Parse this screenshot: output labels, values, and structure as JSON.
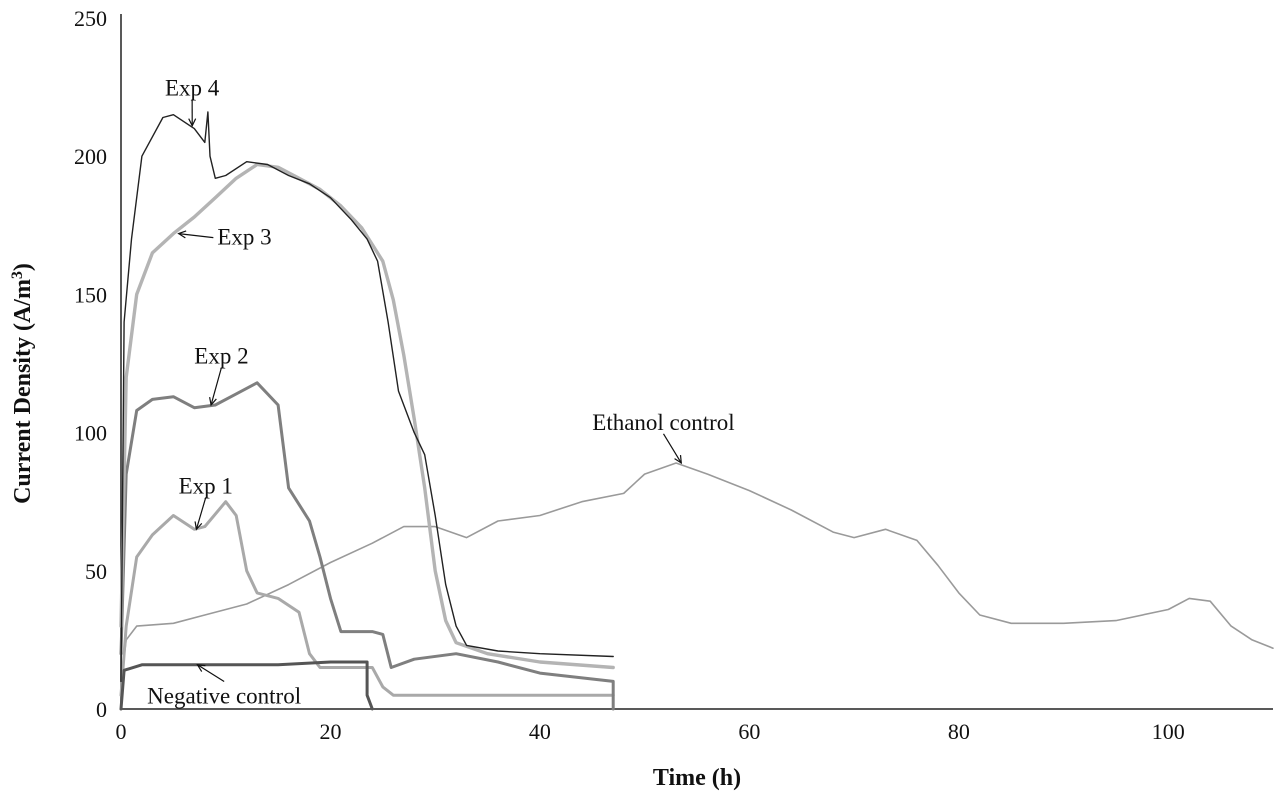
{
  "chart_data": {
    "type": "line",
    "title": "",
    "xlabel": "Time (h)",
    "ylabel_main": "Current Density (A/m",
    "ylabel_sup": "3",
    "ylabel_end": ")",
    "xlim": [
      0,
      110
    ],
    "ylim": [
      0,
      250
    ],
    "x_ticks": [
      0,
      20,
      40,
      60,
      80,
      100
    ],
    "y_ticks": [
      0,
      50,
      100,
      150,
      200,
      250
    ],
    "grid": false,
    "legend": "none",
    "series": [
      {
        "name": "Ethanol control",
        "color": "#9a9a9a",
        "width": 1.6,
        "points": [
          [
            0,
            10
          ],
          [
            0.5,
            25
          ],
          [
            1.5,
            30
          ],
          [
            5,
            31
          ],
          [
            8,
            34
          ],
          [
            12,
            38
          ],
          [
            16,
            45
          ],
          [
            20,
            53
          ],
          [
            24,
            60
          ],
          [
            27,
            66
          ],
          [
            30,
            66
          ],
          [
            33,
            62
          ],
          [
            36,
            68
          ],
          [
            40,
            70
          ],
          [
            44,
            75
          ],
          [
            48,
            78
          ],
          [
            50,
            85
          ],
          [
            53,
            89
          ],
          [
            56,
            85
          ],
          [
            60,
            79
          ],
          [
            64,
            72
          ],
          [
            68,
            64
          ],
          [
            70,
            62
          ],
          [
            73,
            65
          ],
          [
            76,
            61
          ],
          [
            78,
            52
          ],
          [
            80,
            42
          ],
          [
            82,
            34
          ],
          [
            85,
            31
          ],
          [
            90,
            31
          ],
          [
            95,
            32
          ],
          [
            100,
            36
          ],
          [
            102,
            40
          ],
          [
            104,
            39
          ],
          [
            106,
            30
          ],
          [
            108,
            25
          ],
          [
            110,
            22
          ]
        ]
      },
      {
        "name": "Exp 1",
        "color": "#a9a9a9",
        "width": 3,
        "points": [
          [
            0,
            5
          ],
          [
            0.5,
            30
          ],
          [
            1.5,
            55
          ],
          [
            3,
            63
          ],
          [
            5,
            70
          ],
          [
            7,
            65
          ],
          [
            8,
            66
          ],
          [
            10,
            75
          ],
          [
            11,
            70
          ],
          [
            12,
            50
          ],
          [
            13,
            42
          ],
          [
            15,
            40
          ],
          [
            17,
            35
          ],
          [
            18,
            20
          ],
          [
            19,
            15
          ],
          [
            24,
            15
          ],
          [
            25,
            8
          ],
          [
            26,
            5
          ],
          [
            47,
            5
          ]
        ]
      },
      {
        "name": "Exp 2",
        "color": "#7f7f7f",
        "width": 3,
        "points": [
          [
            0,
            20
          ],
          [
            0.5,
            85
          ],
          [
            1.5,
            108
          ],
          [
            3,
            112
          ],
          [
            5,
            113
          ],
          [
            7,
            109
          ],
          [
            9,
            110
          ],
          [
            11,
            114
          ],
          [
            13,
            118
          ],
          [
            15,
            110
          ],
          [
            16,
            80
          ],
          [
            18,
            68
          ],
          [
            19,
            55
          ],
          [
            20,
            40
          ],
          [
            21,
            28
          ],
          [
            24,
            28
          ],
          [
            25,
            27
          ],
          [
            25.8,
            15
          ],
          [
            28,
            18
          ],
          [
            32,
            20
          ],
          [
            36,
            17
          ],
          [
            40,
            13
          ],
          [
            47,
            10
          ],
          [
            47,
            0
          ]
        ]
      },
      {
        "name": "Exp 3",
        "color": "#b4b4b4",
        "width": 3.4,
        "points": [
          [
            0,
            30
          ],
          [
            0.5,
            120
          ],
          [
            1.5,
            150
          ],
          [
            3,
            165
          ],
          [
            5,
            172
          ],
          [
            7,
            178
          ],
          [
            9,
            185
          ],
          [
            11,
            192
          ],
          [
            13,
            197
          ],
          [
            15,
            196
          ],
          [
            17,
            192
          ],
          [
            19,
            188
          ],
          [
            21,
            182
          ],
          [
            23,
            174
          ],
          [
            25,
            162
          ],
          [
            26,
            148
          ],
          [
            27,
            128
          ],
          [
            28,
            105
          ],
          [
            29,
            80
          ],
          [
            30,
            50
          ],
          [
            31,
            32
          ],
          [
            32,
            24
          ],
          [
            35,
            20
          ],
          [
            40,
            17
          ],
          [
            47,
            15
          ]
        ]
      },
      {
        "name": "Exp 4",
        "color": "#222222",
        "width": 1.4,
        "points": [
          [
            0,
            10
          ],
          [
            0.3,
            140
          ],
          [
            1,
            170
          ],
          [
            2,
            200
          ],
          [
            4,
            214
          ],
          [
            5,
            215
          ],
          [
            7,
            210
          ],
          [
            8,
            205
          ],
          [
            8.3,
            216
          ],
          [
            8.5,
            200
          ],
          [
            9,
            192
          ],
          [
            10,
            193
          ],
          [
            12,
            198
          ],
          [
            14,
            197
          ],
          [
            16,
            193
          ],
          [
            18,
            190
          ],
          [
            20,
            185
          ],
          [
            22,
            177
          ],
          [
            23.5,
            170
          ],
          [
            24.5,
            162
          ],
          [
            25.5,
            140
          ],
          [
            26.5,
            115
          ],
          [
            28,
            100
          ],
          [
            29,
            92
          ],
          [
            30,
            70
          ],
          [
            31,
            45
          ],
          [
            32,
            30
          ],
          [
            33,
            23
          ],
          [
            36,
            21
          ],
          [
            40,
            20
          ],
          [
            47,
            19
          ]
        ]
      },
      {
        "name": "Negative control",
        "color": "#555555",
        "width": 3,
        "points": [
          [
            0,
            0
          ],
          [
            0.3,
            14
          ],
          [
            2,
            16
          ],
          [
            5,
            16
          ],
          [
            10,
            16
          ],
          [
            15,
            16
          ],
          [
            20,
            17
          ],
          [
            23.5,
            17
          ],
          [
            23.5,
            5
          ],
          [
            24,
            0
          ]
        ]
      }
    ],
    "annotations": [
      {
        "label": "Exp 4",
        "text_x": 4.2,
        "text_y": 222,
        "tip_x": 6.8,
        "tip_y": 211
      },
      {
        "label": "Exp 3",
        "text_x": 9.2,
        "text_y": 168,
        "tip_x": 5.5,
        "tip_y": 172
      },
      {
        "label": "Exp 2",
        "text_x": 7,
        "text_y": 125,
        "tip_x": 8.6,
        "tip_y": 110
      },
      {
        "label": "Exp 1",
        "text_x": 5.5,
        "text_y": 78,
        "tip_x": 7.2,
        "tip_y": 65
      },
      {
        "label": "Ethanol control",
        "text_x": 45,
        "text_y": 101,
        "tip_x": 53.5,
        "tip_y": 89
      },
      {
        "label": "Negative control",
        "text_x": 2.5,
        "text_y": 2,
        "tip_x": 7.3,
        "tip_y": 16
      }
    ]
  }
}
